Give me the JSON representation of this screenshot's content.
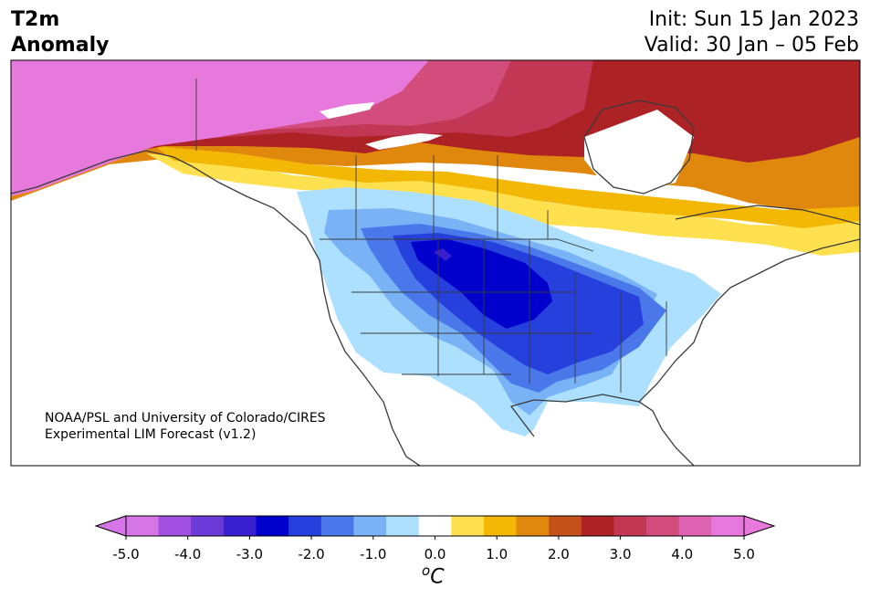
{
  "title": {
    "line1": "T2m",
    "line2": "Anomaly"
  },
  "dates": {
    "init": "Init: Sun 15 Jan 2023",
    "valid": "Valid: 30 Jan – 05 Feb"
  },
  "credit": {
    "line1": "NOAA/PSL and University of Colorado/CIRES",
    "line2": "Experimental LIM Forecast (v1.2)"
  },
  "colorbar": {
    "unit_sup": "o",
    "unit": "C",
    "tick_labels": [
      "-5.0",
      "-4.0",
      "-3.0",
      "-2.0",
      "-1.0",
      "0.0",
      "1.0",
      "2.0",
      "3.0",
      "4.0",
      "5.0"
    ],
    "levels": [
      -5.0,
      -4.5,
      -4.0,
      -3.5,
      -3.0,
      -2.5,
      -2.0,
      -1.5,
      -1.0,
      -0.5,
      0.5,
      1.0,
      1.5,
      2.0,
      2.5,
      3.0,
      3.5,
      4.0,
      4.5,
      5.0
    ],
    "colors": [
      "#d676e6",
      "#a04fe0",
      "#6b3bd9",
      "#3a1fd0",
      "#0000cc",
      "#2540dd",
      "#4a78ea",
      "#79b2f5",
      "#ace0fe",
      "#ffffff",
      "#ffe14f",
      "#f3b705",
      "#e0870e",
      "#c5521a",
      "#ad2225",
      "#c23754",
      "#d34d7c",
      "#de63b2",
      "#e879dc"
    ],
    "extend_low": "#d676e6",
    "extend_high": "#e879dc"
  },
  "map": {
    "projection": "north-america-lambert",
    "legend_colors": {
      "very_warm": "#e879dc",
      "warm": "#ad2225",
      "mild": "#f3b705",
      "neutral": "#ffffff",
      "cool": "#ace0fe",
      "very_cool": "#0000cc"
    }
  }
}
